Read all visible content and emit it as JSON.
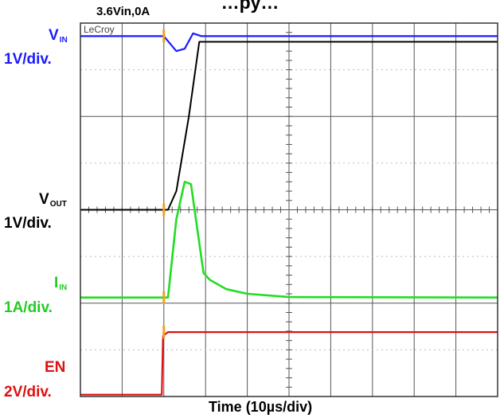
{
  "header": {
    "title_fragment": "…py…",
    "conditions": "3.6Vin,0A"
  },
  "scope": {
    "brand": "LeCroy",
    "colors": {
      "background": "#ffffff",
      "grid": "#555555",
      "vin": "#1a1aff",
      "vout": "#000000",
      "iin": "#22dd22",
      "en": "#dd1111"
    }
  },
  "channels": {
    "vin": {
      "name": "V",
      "sub": "IN",
      "scale": "1V/div."
    },
    "vout": {
      "name": "V",
      "sub": "OUT",
      "scale": "1V/div."
    },
    "iin": {
      "name": "I",
      "sub": "IN",
      "scale": "1A/div."
    },
    "en": {
      "name": "EN",
      "scale": "2V/div."
    }
  },
  "chart_data": {
    "type": "line",
    "xlabel": "Time (10µs/div)",
    "x_unit": "div",
    "y_unit": "div",
    "xlim": [
      0,
      10
    ],
    "ylim": [
      0,
      8
    ],
    "grid": true,
    "trigger_time_div": 2.0,
    "series": [
      {
        "name": "VIN",
        "x": [
          0,
          2.0,
          2.3,
          2.5,
          2.7,
          2.9,
          3.1,
          10
        ],
        "y": [
          7.72,
          7.72,
          7.4,
          7.45,
          7.78,
          7.72,
          7.72,
          7.72
        ]
      },
      {
        "name": "VOUT",
        "x": [
          0,
          2.1,
          2.3,
          2.6,
          2.85,
          3.0,
          10
        ],
        "y": [
          4.0,
          4.0,
          4.4,
          6.0,
          7.6,
          7.6,
          7.6
        ]
      },
      {
        "name": "IIN",
        "x": [
          0,
          2.1,
          2.3,
          2.5,
          2.65,
          2.8,
          2.95,
          3.1,
          3.5,
          4.0,
          5.0,
          10
        ],
        "y": [
          2.12,
          2.12,
          3.8,
          4.6,
          4.55,
          3.6,
          2.65,
          2.5,
          2.3,
          2.2,
          2.13,
          2.12
        ]
      },
      {
        "name": "EN",
        "x": [
          0,
          1.95,
          1.98,
          2.1,
          10
        ],
        "y": [
          0.04,
          0.04,
          1.3,
          1.38,
          1.38
        ]
      }
    ]
  }
}
